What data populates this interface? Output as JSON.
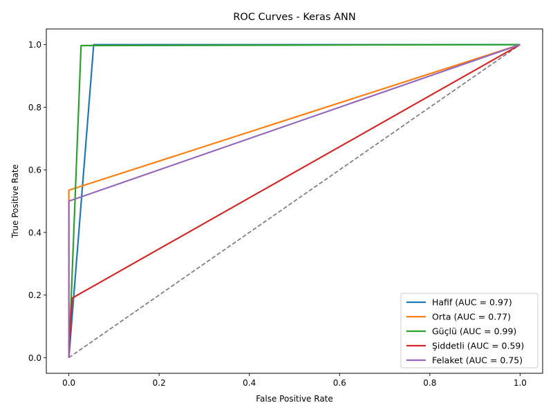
{
  "chart_data": {
    "type": "line",
    "title": "ROC Curves - Keras ANN",
    "xlabel": "False Positive Rate",
    "ylabel": "True Positive Rate",
    "xlim": [
      -0.05,
      1.05
    ],
    "ylim": [
      -0.05,
      1.05
    ],
    "xticks": [
      "0.0",
      "0.2",
      "0.4",
      "0.6",
      "0.8",
      "1.0"
    ],
    "yticks": [
      "0.0",
      "0.2",
      "0.4",
      "0.6",
      "0.8",
      "1.0"
    ],
    "xtick_values": [
      0,
      0.2,
      0.4,
      0.6,
      0.8,
      1.0
    ],
    "ytick_values": [
      0,
      0.2,
      0.4,
      0.6,
      0.8,
      1.0
    ],
    "legend_position": "bottom-right",
    "series": [
      {
        "name": "Hafif (AUC = 0.97)",
        "color": "#1f77b4",
        "x": [
          0,
          0.055,
          1.0
        ],
        "y": [
          0,
          1.0,
          1.0
        ]
      },
      {
        "name": "Orta (AUC = 0.77)",
        "color": "#ff7f0e",
        "x": [
          0,
          0.0,
          1.0
        ],
        "y": [
          0,
          0.535,
          1.0
        ]
      },
      {
        "name": "Güçlü (AUC = 0.99)",
        "color": "#2ca02c",
        "x": [
          0,
          0.027,
          1.0
        ],
        "y": [
          0,
          0.997,
          1.0
        ]
      },
      {
        "name": "Şiddetli (AUC = 0.59)",
        "color": "#d62728",
        "x": [
          0,
          0.007,
          1.0
        ],
        "y": [
          0,
          0.19,
          1.0
        ]
      },
      {
        "name": "Felaket (AUC = 0.75)",
        "color": "#9467bd",
        "x": [
          0,
          0.0,
          1.0
        ],
        "y": [
          0,
          0.5,
          1.0
        ]
      }
    ],
    "reference_line": {
      "x": [
        0,
        1
      ],
      "y": [
        0,
        1
      ],
      "color": "#808080",
      "style": "dashed"
    }
  }
}
